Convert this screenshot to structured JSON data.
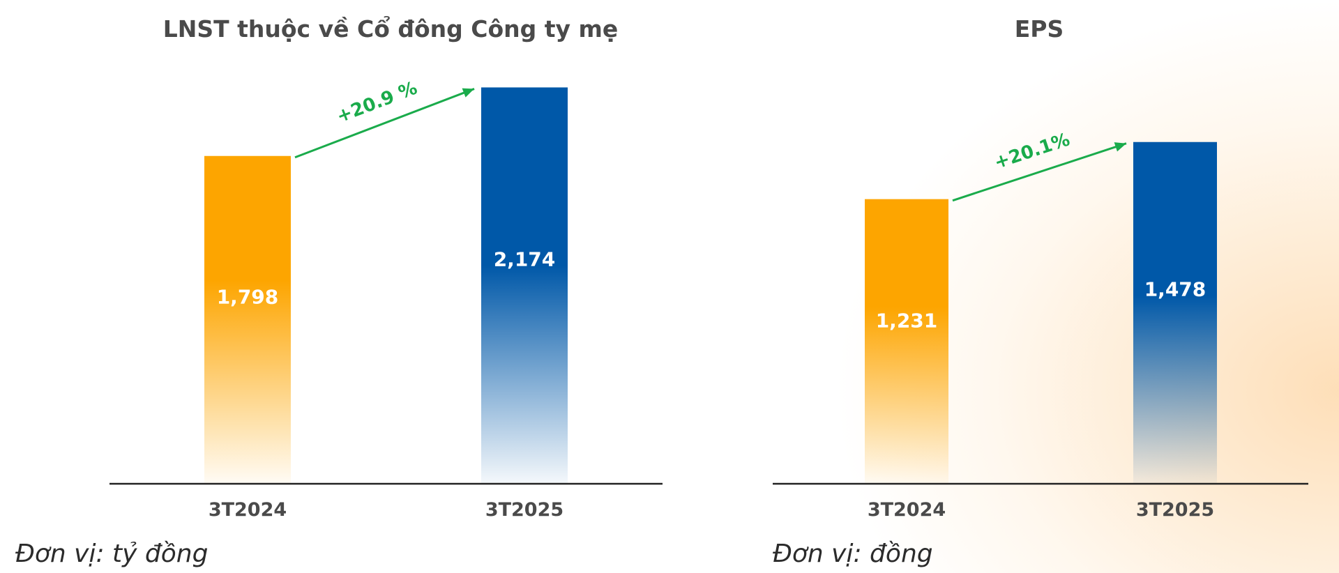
{
  "colors": {
    "bar_2024": "#FDA500",
    "bar_2025": "#0058A8",
    "growth": "#1AAB4B",
    "axis": "#222222",
    "title": "#4A4A4A"
  },
  "chart_data": [
    {
      "type": "bar",
      "title": "LNST thuộc về Cổ đông Công ty mẹ",
      "categories": [
        "3T2024",
        "3T2025"
      ],
      "values": [
        1798,
        2174
      ],
      "value_labels": [
        "1,798",
        "2,174"
      ],
      "growth_label": "+20.9 %",
      "unit_note": "Đơn vị: tỷ đồng",
      "ylim": [
        0,
        2600
      ],
      "grid": false
    },
    {
      "type": "bar",
      "title": "EPS",
      "categories": [
        "3T2024",
        "3T2025"
      ],
      "values": [
        1231,
        1478
      ],
      "value_labels": [
        "1,231",
        "1,478"
      ],
      "growth_label": "+20.1%",
      "unit_note": "Đơn vị: đồng",
      "ylim": [
        0,
        2050
      ],
      "grid": false
    }
  ]
}
